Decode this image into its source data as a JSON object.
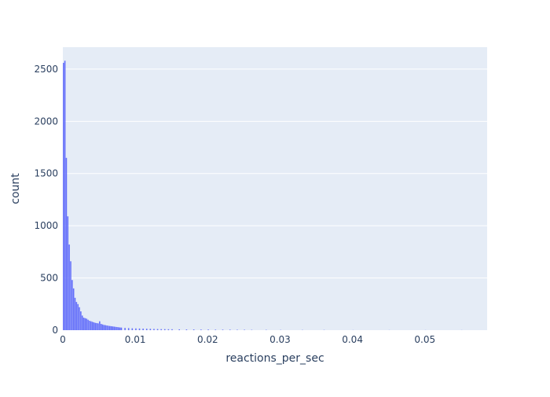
{
  "chart_data": {
    "type": "bar",
    "title": "",
    "xlabel": "reactions_per_sec",
    "ylabel": "count",
    "xlim": [
      0,
      0.0586
    ],
    "ylim": [
      0,
      2710
    ],
    "bin_width": 0.0002,
    "x_ticks": [
      0,
      0.01,
      0.02,
      0.03,
      0.04,
      0.05
    ],
    "x_tick_labels": [
      "0",
      "0.01",
      "0.02",
      "0.03",
      "0.04",
      "0.05"
    ],
    "y_ticks": [
      0,
      500,
      1000,
      1500,
      2000,
      2500
    ],
    "y_tick_labels": [
      "0",
      "500",
      "1000",
      "1500",
      "2000",
      "2500"
    ],
    "grid": true,
    "colors": {
      "bar": "#636efa",
      "plot_bg": "#e5ecf6",
      "grid": "#ffffff",
      "text": "#2a3f5f"
    },
    "bins": {
      "x_start": [
        0,
        0.0002,
        0.0004,
        0.0006,
        0.0008,
        0.001,
        0.0012,
        0.0014,
        0.0016,
        0.0018,
        0.002,
        0.0022,
        0.0024,
        0.0026,
        0.0028,
        0.003,
        0.0032,
        0.0034,
        0.0036,
        0.0038,
        0.004,
        0.0042,
        0.0044,
        0.0046,
        0.0048,
        0.005,
        0.0052,
        0.0054,
        0.0056,
        0.0058,
        0.006,
        0.0062,
        0.0064,
        0.0066,
        0.0068,
        0.007,
        0.0072,
        0.0074,
        0.0076,
        0.0078,
        0.008,
        0.0085,
        0.009,
        0.0095,
        0.01,
        0.0105,
        0.011,
        0.0115,
        0.012,
        0.0125,
        0.013,
        0.0135,
        0.014,
        0.0145,
        0.015,
        0.016,
        0.017,
        0.018,
        0.019,
        0.02,
        0.021,
        0.022,
        0.023,
        0.024,
        0.025,
        0.026,
        0.028,
        0.03,
        0.033,
        0.036,
        0.04,
        0.045,
        0.05,
        0.055
      ],
      "counts": [
        2560,
        2580,
        1650,
        1090,
        820,
        660,
        480,
        400,
        310,
        270,
        250,
        220,
        180,
        140,
        120,
        115,
        110,
        100,
        90,
        85,
        80,
        75,
        70,
        68,
        65,
        85,
        60,
        55,
        50,
        48,
        45,
        42,
        40,
        38,
        36,
        34,
        32,
        30,
        28,
        26,
        25,
        22,
        20,
        18,
        17,
        16,
        15,
        14,
        13,
        12,
        11,
        10,
        10,
        9,
        9,
        8,
        7,
        7,
        6,
        6,
        5,
        5,
        5,
        4,
        4,
        3,
        3,
        2,
        2,
        2,
        1,
        1,
        1,
        1
      ]
    }
  }
}
